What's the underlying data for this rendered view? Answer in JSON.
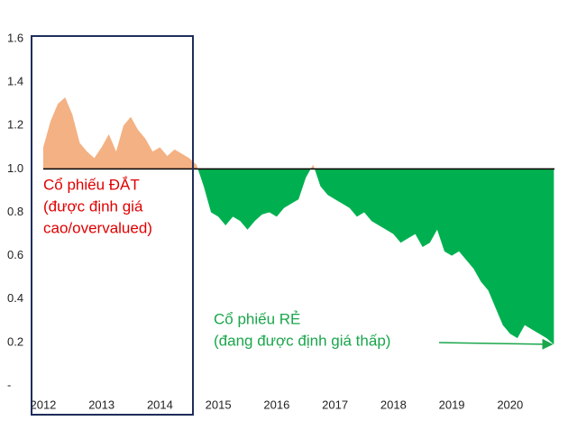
{
  "chart_data": {
    "type": "area",
    "x": [
      2012,
      2012.125,
      2012.25,
      2012.375,
      2012.5,
      2012.625,
      2012.75,
      2012.875,
      2013,
      2013.125,
      2013.25,
      2013.375,
      2013.5,
      2013.625,
      2013.75,
      2013.875,
      2014,
      2014.125,
      2014.25,
      2014.375,
      2014.5,
      2014.625,
      2014.75,
      2014.875,
      2015,
      2015.125,
      2015.25,
      2015.375,
      2015.5,
      2015.625,
      2015.75,
      2015.875,
      2016,
      2016.125,
      2016.25,
      2016.375,
      2016.5,
      2016.625,
      2016.75,
      2016.875,
      2017,
      2017.125,
      2017.25,
      2017.375,
      2017.5,
      2017.625,
      2017.75,
      2017.875,
      2018,
      2018.125,
      2018.25,
      2018.375,
      2018.5,
      2018.625,
      2018.75,
      2018.875,
      2019,
      2019.125,
      2019.25,
      2019.375,
      2019.5,
      2019.625,
      2019.75,
      2019.875,
      2020,
      2020.125,
      2020.25,
      2020.375,
      2020.5,
      2020.625,
      2020.75
    ],
    "values": [
      1.1,
      1.22,
      1.3,
      1.33,
      1.25,
      1.12,
      1.08,
      1.05,
      1.1,
      1.16,
      1.08,
      1.2,
      1.24,
      1.18,
      1.14,
      1.08,
      1.1,
      1.06,
      1.09,
      1.07,
      1.05,
      1.02,
      0.92,
      0.8,
      0.78,
      0.74,
      0.78,
      0.76,
      0.72,
      0.76,
      0.79,
      0.8,
      0.78,
      0.82,
      0.84,
      0.86,
      0.96,
      1.02,
      0.92,
      0.88,
      0.86,
      0.84,
      0.82,
      0.78,
      0.8,
      0.76,
      0.74,
      0.72,
      0.7,
      0.66,
      0.68,
      0.7,
      0.64,
      0.66,
      0.72,
      0.62,
      0.6,
      0.62,
      0.58,
      0.54,
      0.48,
      0.44,
      0.36,
      0.28,
      0.24,
      0.22,
      0.28,
      0.26,
      0.24,
      0.22,
      0.19
    ],
    "baseline": 1,
    "color_above": "#f4b183",
    "color_below": "#00b050",
    "xlim": [
      2011.8,
      2020.76
    ],
    "xticks": [
      2012,
      2013,
      2014,
      2015,
      2016,
      2017,
      2018,
      2019,
      2020
    ],
    "ylim": [
      0,
      1.6
    ],
    "yticks": [
      {
        "value": 0,
        "label": "-"
      },
      0.2,
      0.4,
      0.6,
      0.8,
      {
        "value": 1,
        "label": "1.0"
      },
      1.2,
      1.4,
      1.6
    ],
    "annotations": {
      "expensive": [
        "Cổ phiếu ĐẮT",
        "(được định giá",
        "cao/overvalued)"
      ],
      "cheap": [
        "Cổ phiếu RẺ",
        "(đang được định giá thấp)"
      ]
    }
  }
}
